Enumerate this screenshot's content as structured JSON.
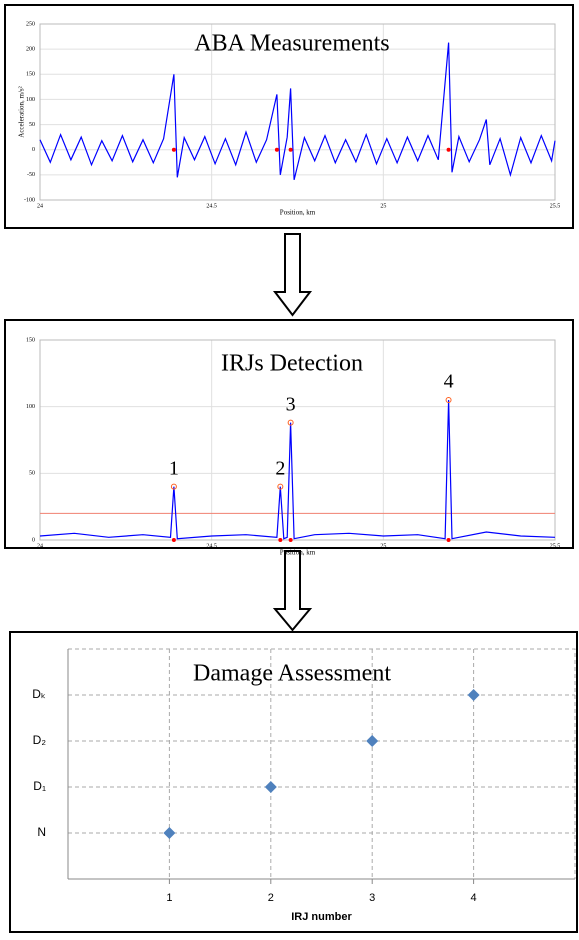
{
  "chart_data": [
    {
      "type": "line",
      "title": "ABA Measurements",
      "x_label": "Position, km",
      "y_label": "Acceleration, m/s²",
      "xlim": [
        24,
        25.5
      ],
      "xticks": [
        24,
        24.5,
        25,
        25.5
      ],
      "ylim": [
        -100,
        250
      ],
      "yticks": [
        -100,
        -50,
        0,
        50,
        100,
        150,
        200,
        250
      ],
      "grid": true,
      "series": [
        {
          "mode": "line",
          "color": "#0000ff",
          "x": [
            24.0,
            24.03,
            24.06,
            24.09,
            24.12,
            24.15,
            24.18,
            24.21,
            24.24,
            24.27,
            24.3,
            24.33,
            24.36,
            24.39,
            24.4,
            24.42,
            24.45,
            24.48,
            24.51,
            24.54,
            24.57,
            24.6,
            24.63,
            24.66,
            24.69,
            24.7,
            24.72,
            24.73,
            24.74,
            24.77,
            24.8,
            24.83,
            24.86,
            24.89,
            24.92,
            24.95,
            24.98,
            25.01,
            25.04,
            25.07,
            25.1,
            25.13,
            25.16,
            25.19,
            25.2,
            25.22,
            25.25,
            25.28,
            25.3,
            25.31,
            25.34,
            25.37,
            25.4,
            25.43,
            25.46,
            25.49,
            25.5
          ],
          "values": [
            20,
            -25,
            30,
            -20,
            25,
            -30,
            18,
            -22,
            28,
            -24,
            20,
            -26,
            22,
            150,
            -55,
            24,
            -20,
            26,
            -28,
            22,
            -30,
            35,
            -25,
            20,
            110,
            -50,
            25,
            122,
            -60,
            24,
            -22,
            28,
            -26,
            20,
            -24,
            30,
            -28,
            22,
            -26,
            25,
            -22,
            28,
            -20,
            213,
            -45,
            26,
            -24,
            20,
            60,
            -30,
            22,
            -50,
            24,
            -26,
            28,
            -22,
            18
          ]
        },
        {
          "mode": "dot",
          "color": "#ff0000",
          "x": [
            24.39,
            24.69,
            24.73,
            25.19
          ],
          "values": [
            0,
            0,
            0,
            0
          ]
        }
      ]
    },
    {
      "type": "line",
      "title": "IRJs Detection",
      "x_label": "Position, km",
      "xlim": [
        24,
        25.5
      ],
      "xticks": [
        24,
        24.5,
        25,
        25.5
      ],
      "ylim": [
        0,
        150
      ],
      "yticks": [
        0,
        50,
        100,
        150
      ],
      "grid": true,
      "threshold": {
        "value": 20,
        "color": "#f08070"
      },
      "annotations": [
        "1",
        "2",
        "3",
        "4"
      ],
      "series": [
        {
          "mode": "line",
          "color": "#0000ff",
          "x": [
            24.0,
            24.1,
            24.2,
            24.3,
            24.38,
            24.39,
            24.4,
            24.5,
            24.6,
            24.69,
            24.7,
            24.71,
            24.72,
            24.73,
            24.74,
            24.8,
            24.9,
            25.0,
            25.1,
            25.18,
            25.19,
            25.2,
            25.3,
            25.4,
            25.5
          ],
          "values": [
            3,
            5,
            2,
            4,
            2,
            40,
            1,
            3,
            4,
            2,
            40,
            1,
            2,
            88,
            1,
            4,
            5,
            3,
            4,
            1,
            105,
            1,
            6,
            3,
            2
          ]
        },
        {
          "mode": "circle",
          "color": "#ff6020",
          "x": [
            24.39,
            24.7,
            24.73,
            25.19
          ],
          "values": [
            40,
            40,
            88,
            105
          ]
        },
        {
          "mode": "dot",
          "color": "#ff0000",
          "x": [
            24.39,
            24.7,
            24.73,
            25.19
          ],
          "values": [
            0,
            0,
            0,
            0
          ]
        }
      ]
    },
    {
      "type": "scatter",
      "title": "Damage Assessment",
      "x_label": "IRJ number",
      "xlim": [
        0,
        5
      ],
      "xticks": [
        1,
        2,
        3,
        4
      ],
      "ylim": [
        0,
        5
      ],
      "yticks": [
        {
          "value": 1,
          "label": "N"
        },
        {
          "value": 2,
          "label": "D₁"
        },
        {
          "value": 3,
          "label": "D₂"
        },
        {
          "value": 4,
          "label": "Dₖ"
        }
      ],
      "grid": true,
      "grid_dashed": true,
      "series": [
        {
          "mode": "diamond",
          "color": "#4f81bd",
          "x": [
            1,
            2,
            3,
            4
          ],
          "values": [
            1,
            2,
            3,
            4
          ]
        }
      ]
    }
  ]
}
